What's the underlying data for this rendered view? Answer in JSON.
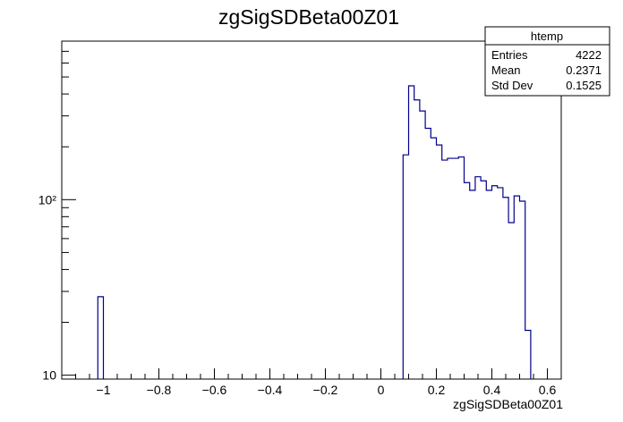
{
  "chart_data": {
    "type": "histogram",
    "title": "zgSigSDBeta00Z01",
    "xlabel": "zgSigSDBeta00Z01",
    "ylabel": "",
    "xlim": [
      -1.15,
      0.65
    ],
    "ylim": [
      9.5,
      800
    ],
    "yscale": "log",
    "grid": false,
    "line_color": "#00008b",
    "x_ticks": [
      -1,
      -0.8,
      -0.6,
      -0.4,
      -0.2,
      0,
      0.2,
      0.4,
      0.6
    ],
    "x_tick_labels": [
      "−1",
      "−0.8",
      "−0.6",
      "−0.4",
      "−0.2",
      "0",
      "0.2",
      "0.4",
      "0.6"
    ],
    "y_ticks": [
      10,
      100
    ],
    "y_tick_labels": [
      "10",
      "10²"
    ],
    "bins": [
      {
        "x0": -1.02,
        "x1": -1.0,
        "y": 28
      },
      {
        "x0": 0.08,
        "x1": 0.1,
        "y": 180
      },
      {
        "x0": 0.1,
        "x1": 0.12,
        "y": 445
      },
      {
        "x0": 0.12,
        "x1": 0.14,
        "y": 370
      },
      {
        "x0": 0.14,
        "x1": 0.16,
        "y": 320
      },
      {
        "x0": 0.16,
        "x1": 0.18,
        "y": 255
      },
      {
        "x0": 0.18,
        "x1": 0.2,
        "y": 225
      },
      {
        "x0": 0.2,
        "x1": 0.22,
        "y": 205
      },
      {
        "x0": 0.22,
        "x1": 0.24,
        "y": 168
      },
      {
        "x0": 0.24,
        "x1": 0.26,
        "y": 172
      },
      {
        "x0": 0.26,
        "x1": 0.28,
        "y": 172
      },
      {
        "x0": 0.28,
        "x1": 0.3,
        "y": 175
      },
      {
        "x0": 0.3,
        "x1": 0.32,
        "y": 125
      },
      {
        "x0": 0.32,
        "x1": 0.34,
        "y": 113
      },
      {
        "x0": 0.34,
        "x1": 0.36,
        "y": 135
      },
      {
        "x0": 0.36,
        "x1": 0.38,
        "y": 128
      },
      {
        "x0": 0.38,
        "x1": 0.4,
        "y": 113
      },
      {
        "x0": 0.4,
        "x1": 0.42,
        "y": 120
      },
      {
        "x0": 0.42,
        "x1": 0.44,
        "y": 117
      },
      {
        "x0": 0.44,
        "x1": 0.46,
        "y": 103
      },
      {
        "x0": 0.46,
        "x1": 0.48,
        "y": 74
      },
      {
        "x0": 0.48,
        "x1": 0.5,
        "y": 105
      },
      {
        "x0": 0.5,
        "x1": 0.52,
        "y": 98
      },
      {
        "x0": 0.52,
        "x1": 0.54,
        "y": 18
      }
    ]
  },
  "stats_box": {
    "title": "htemp",
    "rows": [
      {
        "label": "Entries",
        "value": "4222"
      },
      {
        "label": "Mean",
        "value": "0.2371"
      },
      {
        "label": "Std Dev",
        "value": "0.1525"
      }
    ]
  }
}
